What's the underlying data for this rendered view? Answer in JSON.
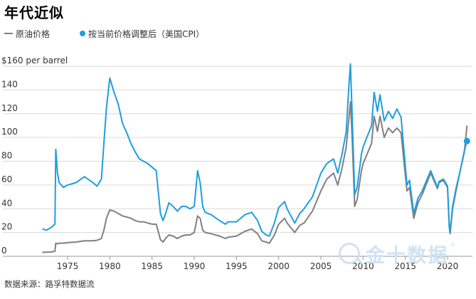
{
  "title": "年代近似",
  "legend": [
    {
      "name": "原油价格",
      "color": "#808080",
      "style": "line"
    },
    {
      "name": "按当前价格调整后（美国CPI）",
      "color": "#1e9ee0",
      "style": "dot-line"
    }
  ],
  "source": "数据来源：路孚特数据流",
  "watermark": {
    "text": "金十数据",
    "mark": "®"
  },
  "chart_data": {
    "type": "line",
    "title": "年代近似",
    "xlabel": "",
    "ylabel": "",
    "y_unit_label": "$160 per barrel",
    "ylim": [
      0,
      160
    ],
    "xlim": [
      1970,
      2023
    ],
    "grid": true,
    "legend_position": "top-left",
    "y_ticks": [
      0,
      20,
      40,
      60,
      80,
      100,
      120,
      140,
      160
    ],
    "y_tick_labels": [
      "0",
      "20",
      "40",
      "60",
      "80",
      "100",
      "120",
      "140",
      "$160 per barrel"
    ],
    "x_ticks": [
      1975,
      1980,
      1985,
      1990,
      1995,
      2000,
      2005,
      2010,
      2015,
      2020
    ],
    "series": [
      {
        "name": "原油价格",
        "color": "#808080",
        "x": [
          1972.0,
          1972.5,
          1973.0,
          1973.5,
          1973.6,
          1973.8,
          1974.0,
          1974.5,
          1975,
          1976,
          1977,
          1978,
          1978.5,
          1979.0,
          1979.3,
          1979.6,
          1980.0,
          1980.5,
          1981.0,
          1981.5,
          1982,
          1982.5,
          1983,
          1983.5,
          1984,
          1984.5,
          1985,
          1985.5,
          1986.0,
          1986.3,
          1986.6,
          1987,
          1987.5,
          1988,
          1988.5,
          1989,
          1989.5,
          1990.0,
          1990.4,
          1990.7,
          1991.0,
          1991.3,
          1992,
          1993,
          1993.7,
          1994,
          1995,
          1996,
          1996.8,
          1997.5,
          1998,
          1998.5,
          1998.9,
          1999.5,
          2000.0,
          2000.7,
          2001.0,
          2001.9,
          2002.5,
          2003,
          2004,
          2005,
          2005.7,
          2006.5,
          2007,
          2007.5,
          2008.0,
          2008.3,
          2008.5,
          2008.7,
          2009.0,
          2009.3,
          2009.8,
          2010,
          2011.0,
          2011.3,
          2011.7,
          2012.0,
          2012.5,
          2013,
          2013.5,
          2014,
          2014.5,
          2014.9,
          2015.2,
          2015.5,
          2016.0,
          2016.5,
          2017,
          2018.0,
          2018.8,
          2019,
          2019.5,
          2020.0,
          2020.2,
          2020.3,
          2020.6,
          2021,
          2021.5,
          2022.0,
          2022.3
        ],
        "values": [
          3.3,
          3.5,
          3.6,
          4.2,
          11,
          10.5,
          11,
          11,
          11.5,
          12,
          13,
          13,
          13.5,
          15,
          22,
          32,
          39,
          38,
          36,
          34,
          33,
          32,
          30,
          29,
          29,
          28,
          27,
          27,
          14,
          12,
          15,
          18,
          17,
          15,
          17,
          18,
          18,
          20,
          34,
          32,
          22,
          20,
          19,
          17,
          15,
          16,
          17,
          21,
          23,
          19,
          13,
          12,
          11,
          18,
          27,
          32,
          28,
          20,
          26,
          28,
          38,
          55,
          65,
          70,
          60,
          74,
          92,
          115,
          130,
          100,
          42,
          48,
          72,
          78,
          95,
          118,
          105,
          118,
          100,
          108,
          104,
          108,
          104,
          75,
          55,
          58,
          32,
          45,
          52,
          70,
          57,
          62,
          64,
          58,
          25,
          19,
          40,
          55,
          72,
          88,
          110
        ]
      },
      {
        "name": "按当前价格调整后（美国CPI）",
        "color": "#1e9ee0",
        "x": [
          1972.0,
          1972.5,
          1973.0,
          1973.5,
          1973.6,
          1973.8,
          1974.0,
          1974.5,
          1975,
          1976,
          1977,
          1978,
          1978.5,
          1979.0,
          1979.3,
          1979.6,
          1980.0,
          1980.5,
          1981.0,
          1981.5,
          1982,
          1982.5,
          1983,
          1983.5,
          1984,
          1984.5,
          1985,
          1985.5,
          1986.0,
          1986.3,
          1986.6,
          1987,
          1987.5,
          1988,
          1988.5,
          1989,
          1989.5,
          1990.0,
          1990.4,
          1990.7,
          1991.0,
          1991.3,
          1992,
          1993,
          1993.7,
          1994,
          1995,
          1996,
          1996.8,
          1997.5,
          1998,
          1998.5,
          1998.9,
          1999.5,
          2000.0,
          2000.7,
          2001.0,
          2001.9,
          2002.5,
          2003,
          2004,
          2005,
          2005.7,
          2006.5,
          2007,
          2007.5,
          2008.0,
          2008.3,
          2008.5,
          2008.7,
          2009.0,
          2009.3,
          2009.8,
          2010,
          2011.0,
          2011.3,
          2011.7,
          2012.0,
          2012.5,
          2013,
          2013.5,
          2014,
          2014.5,
          2014.9,
          2015.2,
          2015.5,
          2016.0,
          2016.5,
          2017,
          2018.0,
          2018.8,
          2019,
          2019.5,
          2020.0,
          2020.2,
          2020.3,
          2020.6,
          2021,
          2021.5,
          2022.0,
          2022.3
        ],
        "values": [
          23,
          22,
          24,
          27,
          90,
          70,
          62,
          58,
          60,
          62,
          67,
          62,
          59,
          65,
          95,
          125,
          150,
          138,
          128,
          112,
          104,
          95,
          88,
          82,
          80,
          78,
          75,
          72,
          36,
          30,
          36,
          45,
          42,
          38,
          42,
          42,
          40,
          42,
          72,
          62,
          42,
          37,
          35,
          30,
          27,
          29,
          29,
          35,
          37,
          30,
          21,
          18,
          17,
          28,
          41,
          46,
          40,
          28,
          36,
          40,
          50,
          70,
          78,
          82,
          70,
          86,
          105,
          142,
          162,
          120,
          52,
          58,
          86,
          92,
          110,
          138,
          122,
          136,
          114,
          122,
          116,
          124,
          117,
          84,
          60,
          64,
          36,
          49,
          55,
          72,
          58,
          63,
          65,
          59,
          25,
          20,
          42,
          57,
          72,
          89,
          97
        ]
      }
    ]
  }
}
